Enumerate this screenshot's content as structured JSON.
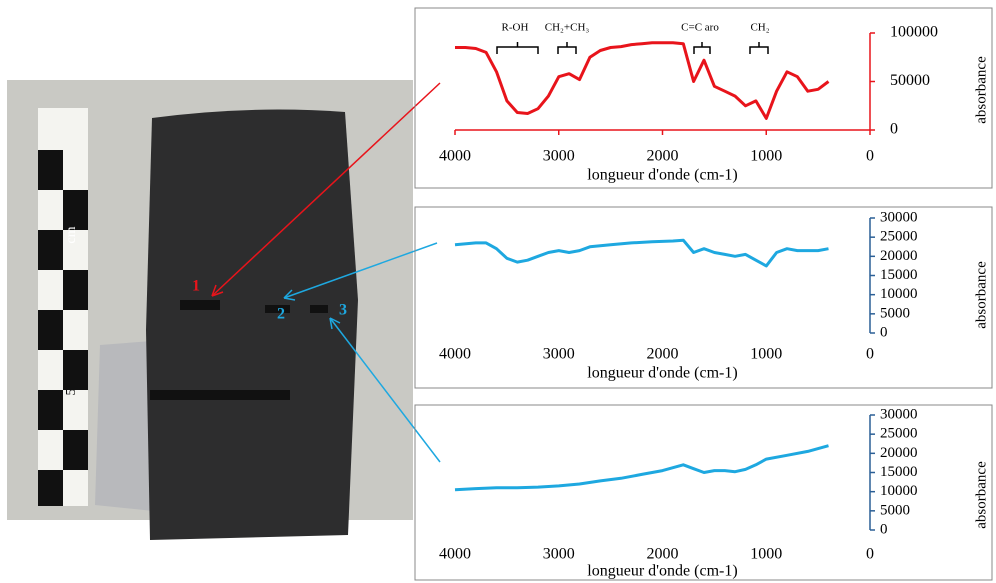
{
  "photo": {
    "points": [
      "1",
      "2",
      "3"
    ],
    "scale_labels": [
      "cm",
      "5"
    ]
  },
  "chart_data": [
    {
      "type": "line",
      "xlabel": "longueur d'onde (cm-1)",
      "ylabel": "absorbance",
      "annotations": [
        "R-OH",
        "CH₂+CH₃",
        "C=C aro",
        "CH₂"
      ],
      "xlim": [
        4000,
        0
      ],
      "xticks": [
        4000,
        3000,
        2000,
        1000,
        0
      ],
      "ylim": [
        0,
        100000
      ],
      "yticks": [
        0,
        50000,
        100000
      ],
      "axis_color": "#e8141b",
      "x": [
        4000,
        3900,
        3800,
        3700,
        3600,
        3500,
        3400,
        3300,
        3200,
        3100,
        3000,
        2900,
        2800,
        2700,
        2600,
        2500,
        2400,
        2300,
        2200,
        2100,
        2000,
        1900,
        1800,
        1700,
        1600,
        1500,
        1400,
        1300,
        1200,
        1100,
        1000,
        900,
        800,
        700,
        600,
        500,
        400
      ],
      "series": [
        {
          "color": "#e8141b",
          "values": [
            85000,
            85000,
            84000,
            80000,
            60000,
            30000,
            18000,
            17000,
            22000,
            35000,
            55000,
            58000,
            52000,
            75000,
            82000,
            85000,
            86000,
            88000,
            89000,
            90000,
            90000,
            90000,
            89000,
            50000,
            72000,
            45000,
            40000,
            35000,
            25000,
            30000,
            12000,
            40000,
            60000,
            55000,
            40000,
            42000,
            50000
          ]
        }
      ]
    },
    {
      "type": "line",
      "xlabel": "longueur d'onde (cm-1)",
      "ylabel": "absorbance",
      "xlim": [
        4000,
        0
      ],
      "xticks": [
        4000,
        3000,
        2000,
        1000,
        0
      ],
      "ylim": [
        0,
        30000
      ],
      "yticks": [
        0,
        5000,
        10000,
        15000,
        20000,
        25000,
        30000
      ],
      "axis_color": "#2a5f96",
      "x": [
        4000,
        3800,
        3700,
        3600,
        3500,
        3400,
        3300,
        3200,
        3100,
        3000,
        2900,
        2800,
        2700,
        2500,
        2300,
        2100,
        1900,
        1800,
        1700,
        1600,
        1500,
        1400,
        1300,
        1200,
        1100,
        1000,
        900,
        800,
        700,
        600,
        500,
        400
      ],
      "series": [
        {
          "color": "#1ea8e0",
          "values": [
            23000,
            23500,
            23500,
            22000,
            19500,
            18500,
            19000,
            20000,
            21000,
            21500,
            21000,
            21500,
            22500,
            23000,
            23500,
            23800,
            24000,
            24200,
            21000,
            22000,
            21000,
            20500,
            20000,
            20500,
            19000,
            17500,
            21000,
            22000,
            21500,
            21500,
            21500,
            22000
          ]
        }
      ]
    },
    {
      "type": "line",
      "xlabel": "longueur d'onde (cm-1)",
      "ylabel": "absorbance",
      "xlim": [
        4000,
        0
      ],
      "xticks": [
        4000,
        3000,
        2000,
        1000,
        0
      ],
      "ylim": [
        0,
        30000
      ],
      "yticks": [
        0,
        5000,
        10000,
        15000,
        20000,
        25000,
        30000
      ],
      "axis_color": "#2a5f96",
      "x": [
        4000,
        3800,
        3600,
        3400,
        3200,
        3000,
        2800,
        2600,
        2400,
        2200,
        2000,
        1800,
        1700,
        1600,
        1500,
        1400,
        1300,
        1200,
        1100,
        1000,
        800,
        600,
        400
      ],
      "series": [
        {
          "color": "#1ea8e0",
          "values": [
            10500,
            10800,
            11000,
            11000,
            11200,
            11500,
            12000,
            12800,
            13500,
            14500,
            15500,
            17000,
            16000,
            15000,
            15500,
            15500,
            15200,
            15800,
            17000,
            18500,
            19500,
            20500,
            22000
          ]
        }
      ]
    }
  ]
}
